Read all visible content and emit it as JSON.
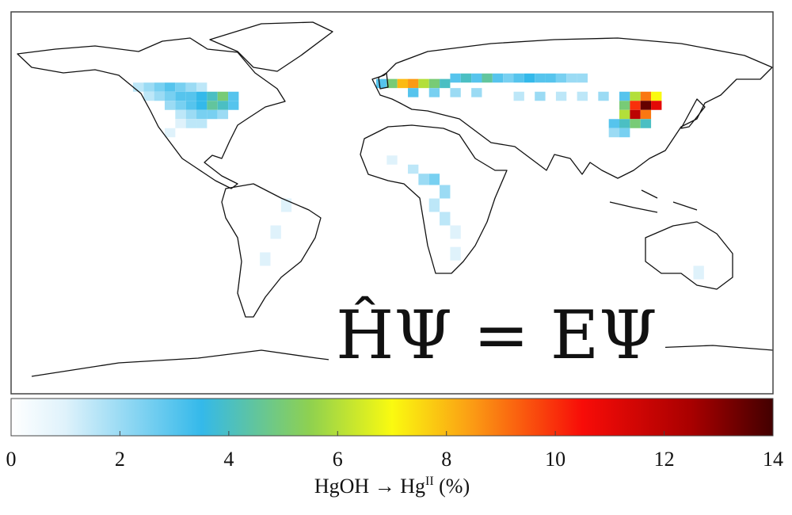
{
  "map": {
    "cells": {
      "lon": [
        -120,
        -115,
        -110,
        -105,
        -100,
        -95,
        -90,
        -115,
        -110,
        -105,
        -100,
        -95,
        -90,
        -85,
        -80,
        -75,
        -105,
        -100,
        -95,
        -90,
        -85,
        -80,
        -75,
        -100,
        -95,
        -90,
        -85,
        -80,
        -100,
        -95,
        -90,
        -105,
        -5,
        0,
        5,
        10,
        15,
        20,
        25,
        30,
        35,
        40,
        45,
        50,
        55,
        60,
        65,
        70,
        75,
        80,
        85,
        90,
        10,
        20,
        30,
        40,
        60,
        70,
        80,
        90,
        100,
        110,
        115,
        120,
        125,
        110,
        115,
        120,
        125,
        110,
        115,
        120,
        105,
        110,
        115,
        120,
        105,
        110,
        0,
        10,
        15,
        20,
        25,
        20,
        25,
        30,
        30,
        -50,
        -55,
        -60,
        145
      ],
      "lat": [
        50,
        50,
        50,
        50,
        50,
        50,
        50,
        45,
        45,
        45,
        45,
        45,
        45,
        45,
        45,
        45,
        40,
        40,
        40,
        40,
        40,
        40,
        40,
        35,
        35,
        35,
        35,
        35,
        30,
        30,
        30,
        25,
        52,
        52,
        52,
        52,
        52,
        52,
        52,
        55,
        55,
        55,
        55,
        55,
        55,
        55,
        55,
        55,
        55,
        55,
        55,
        55,
        47,
        47,
        47,
        47,
        45,
        45,
        45,
        45,
        45,
        45,
        45,
        45,
        45,
        40,
        40,
        40,
        40,
        35,
        35,
        35,
        30,
        30,
        30,
        30,
        25,
        25,
        10,
        5,
        0,
        0,
        -5,
        -10,
        -15,
        -20,
        -28,
        -10,
        -20,
        -30,
        -35
      ],
      "values": [
        1.5,
        2,
        2.5,
        3,
        2.5,
        2,
        1.5,
        1.5,
        2,
        2.5,
        3,
        3,
        3.5,
        4,
        5,
        3,
        2,
        2.5,
        3,
        3.5,
        4.5,
        4,
        3,
        1.5,
        2,
        2.5,
        2.5,
        2,
        1,
        1.5,
        1.5,
        1,
        3,
        5,
        8,
        8.5,
        6,
        5,
        4,
        3,
        4,
        3,
        4.5,
        3,
        2.5,
        3,
        3.5,
        3,
        3,
        2.5,
        2,
        2,
        3,
        2.5,
        2,
        2,
        1.5,
        2,
        1.5,
        1.5,
        2,
        3,
        6,
        9,
        7,
        5,
        10,
        13.5,
        11,
        6,
        12,
        9,
        3,
        4,
        5,
        4,
        2,
        2.5,
        1,
        1.5,
        2,
        2.5,
        2,
        1.5,
        1.5,
        1,
        1,
        1,
        1,
        1,
        1
      ]
    },
    "colormap": [
      {
        "value": 0,
        "color": "#ffffff"
      },
      {
        "value": 1,
        "color": "#dff2fb"
      },
      {
        "value": 3.5,
        "color": "#34b9ea"
      },
      {
        "value": 5.5,
        "color": "#8fd14f"
      },
      {
        "value": 7,
        "color": "#fafa10"
      },
      {
        "value": 8.5,
        "color": "#fb9a14"
      },
      {
        "value": 10.5,
        "color": "#f80c08"
      },
      {
        "value": 12.5,
        "color": "#a80000"
      },
      {
        "value": 14,
        "color": "#420000"
      }
    ],
    "overlay": "ĤΨ = EΨ"
  },
  "colorbar": {
    "lim": [
      0,
      14
    ],
    "ticks": [
      0,
      2,
      4,
      6,
      8,
      10,
      12,
      14
    ],
    "label": {
      "main": "HgOH → Hg",
      "sup": "II",
      "after": " (%)"
    }
  }
}
